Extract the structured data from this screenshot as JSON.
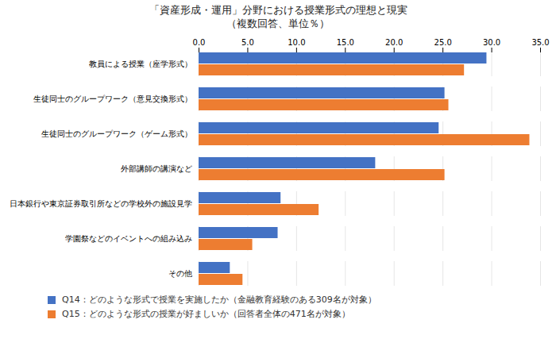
{
  "chart_data": {
    "type": "bar",
    "orientation": "horizontal",
    "title": "「資産形成・運用」分野における授業形式の理想と現実",
    "subtitle": "（複数回答、単位％）",
    "categories": [
      "教員による授業（座学形式）",
      "生徒同士のグループワーク（意見交換形式）",
      "生徒同士のグループワーク（ゲーム形式）",
      "外部講師の講演など",
      "日本銀行や東京証券取引所などの学校外の施設見学",
      "学園祭などのイベントへの組み込み",
      "その他"
    ],
    "series": [
      {
        "name": "Q14：どのような形式で授業を実施したか（金融教育経験のある309名が対象）",
        "color": "#4472C4",
        "values": [
          29.5,
          25.2,
          24.6,
          18.1,
          8.4,
          8.1,
          3.2
        ]
      },
      {
        "name": "Q15：どのような形式の授業が好ましいか（回答者全体の471名が対象）",
        "color": "#ED7D31",
        "values": [
          27.2,
          25.6,
          33.9,
          25.2,
          12.3,
          5.5,
          4.5
        ]
      }
    ],
    "xlim": [
      0,
      35.0
    ],
    "xticks": [
      {
        "value": 0,
        "label": "0.0"
      },
      {
        "value": 5,
        "label": "5.0"
      },
      {
        "value": 10,
        "label": "10.0"
      },
      {
        "value": 15,
        "label": "15.0"
      },
      {
        "value": 20,
        "label": "20.0"
      },
      {
        "value": 25,
        "label": "25.0"
      },
      {
        "value": 30,
        "label": "30.0"
      },
      {
        "value": 35,
        "label": "35.0"
      }
    ],
    "grid": true,
    "legend": "bottom"
  }
}
